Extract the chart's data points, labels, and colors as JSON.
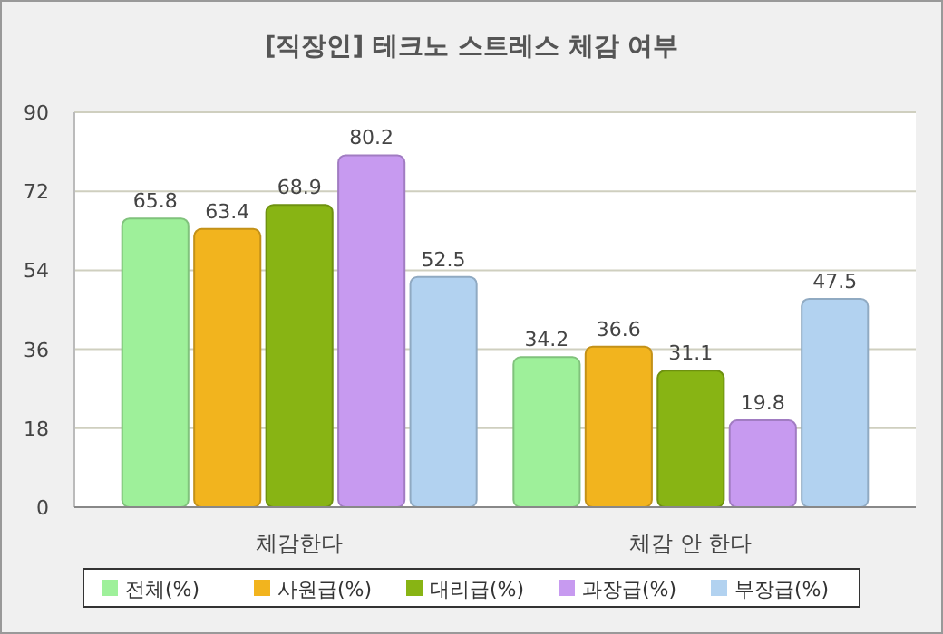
{
  "chart_data": {
    "type": "bar",
    "title": "[직장인] 테크노 스트레스 체감 여부",
    "categories": [
      "체감한다",
      "체감 안 한다"
    ],
    "series": [
      {
        "name": "전체(%)",
        "color": "#9ef09a",
        "values": [
          65.8,
          34.2
        ]
      },
      {
        "name": "사원급(%)",
        "color": "#f2b41e",
        "values": [
          63.4,
          36.6
        ]
      },
      {
        "name": "대리급(%)",
        "color": "#88b414",
        "values": [
          68.9,
          31.1
        ]
      },
      {
        "name": "과장급(%)",
        "color": "#c79af0",
        "values": [
          80.2,
          19.8
        ]
      },
      {
        "name": "부장급(%)",
        "color": "#b2d2f0",
        "values": [
          52.5,
          47.5
        ]
      }
    ],
    "ylim": [
      0,
      90
    ],
    "yticks": [
      0,
      18,
      36,
      54,
      72,
      90
    ],
    "grid": "y",
    "legend": "bottom",
    "data_labels": true
  }
}
